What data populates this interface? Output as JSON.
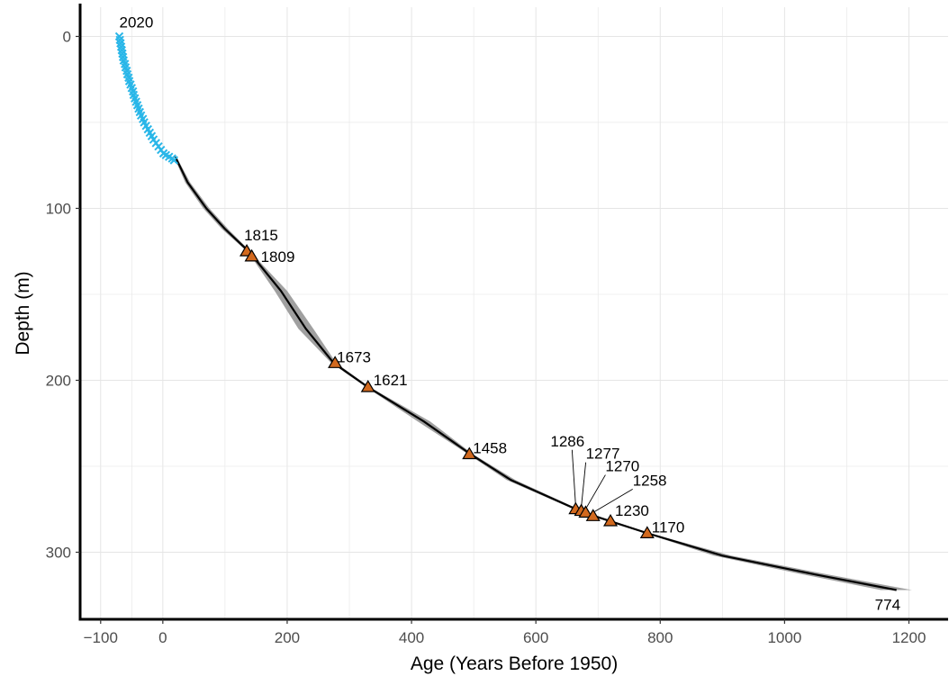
{
  "chart_data": {
    "type": "line",
    "title": "",
    "xlabel": "Age (Years Before 1950)",
    "ylabel": "Depth (m)",
    "xlim": [
      -133,
      1263
    ],
    "ylim": [
      -17,
      339
    ],
    "y_reversed": true,
    "grid": true,
    "x_ticks": [
      -100,
      0,
      200,
      400,
      600,
      800,
      1000,
      1200
    ],
    "x_tick_labels": [
      "−100",
      "0",
      "200",
      "400",
      "600",
      "800",
      "1000",
      "1200"
    ],
    "y_ticks": [
      0,
      100,
      200,
      300
    ],
    "y_tick_labels": [
      "0",
      "100",
      "200",
      "300"
    ],
    "colors": {
      "layer_counted": "#29b6e8",
      "age_model": "#000000",
      "uncertainty": "#a0a0a0",
      "tie_point_fill": "#d2691e",
      "tie_point_edge": "#000000",
      "grid": "#e5e5e5"
    },
    "series": [
      {
        "marker": "x",
        "color": "#29b6e8",
        "points": [
          [
            -70,
            0
          ],
          [
            -69,
            2
          ],
          [
            -68,
            4
          ],
          [
            -67,
            6
          ],
          [
            -66,
            8
          ],
          [
            -65,
            10
          ],
          [
            -64,
            12
          ],
          [
            -63,
            14
          ],
          [
            -61,
            16
          ],
          [
            -60,
            18
          ],
          [
            -58,
            20
          ],
          [
            -57,
            22
          ],
          [
            -55,
            24
          ],
          [
            -54,
            26
          ],
          [
            -52,
            28
          ],
          [
            -50,
            30
          ],
          [
            -48,
            32
          ],
          [
            -47,
            34
          ],
          [
            -45,
            36
          ],
          [
            -43,
            38
          ],
          [
            -41,
            40
          ],
          [
            -39,
            42
          ],
          [
            -37,
            44
          ],
          [
            -35,
            46
          ],
          [
            -32,
            48
          ],
          [
            -30,
            50
          ],
          [
            -27,
            52
          ],
          [
            -24,
            54
          ],
          [
            -21,
            56
          ],
          [
            -18,
            58
          ],
          [
            -15,
            60
          ],
          [
            -11,
            62
          ],
          [
            -7,
            64
          ],
          [
            -3,
            66
          ],
          [
            1,
            68
          ],
          [
            5,
            69
          ],
          [
            10,
            70
          ],
          [
            15,
            71
          ],
          [
            18,
            72
          ]
        ]
      },
      {
        "color": "#000000",
        "x": [
          20,
          40,
          70,
          100,
          135,
          145,
          190,
          230,
          275,
          330,
          420,
          495,
          560,
          665,
          680,
          695,
          720,
          780,
          900,
          1050,
          1180
        ],
        "y": [
          70,
          85,
          100,
          112,
          124,
          128,
          148,
          170,
          190,
          204,
          224,
          243,
          258,
          275,
          277,
          279,
          282,
          289,
          302,
          313,
          322
        ],
        "band_halfwidth": [
          2,
          4,
          5,
          5,
          3,
          3,
          10,
          12,
          4,
          3,
          10,
          4,
          7,
          4,
          4,
          4,
          5,
          4,
          14,
          20,
          25
        ]
      }
    ],
    "tie_points": [
      {
        "x": 135,
        "y": 125,
        "label": "1815"
      },
      {
        "x": 143,
        "y": 128,
        "label": "1809"
      },
      {
        "x": 277,
        "y": 190,
        "label": "1673"
      },
      {
        "x": 330,
        "y": 204,
        "label": "1621"
      },
      {
        "x": 493,
        "y": 243,
        "label": "1458"
      },
      {
        "x": 664,
        "y": 275,
        "label": "1286"
      },
      {
        "x": 673,
        "y": 276,
        "label": "1277"
      },
      {
        "x": 680,
        "y": 277,
        "label": "1270"
      },
      {
        "x": 692,
        "y": 279,
        "label": "1258"
      },
      {
        "x": 720,
        "y": 282,
        "label": "1230"
      },
      {
        "x": 779,
        "y": 289,
        "label": "1170"
      }
    ],
    "annotations": [
      {
        "text": "2020",
        "x": -70,
        "y": 0
      },
      {
        "text": "774",
        "x": 1180,
        "y": 322
      }
    ]
  }
}
